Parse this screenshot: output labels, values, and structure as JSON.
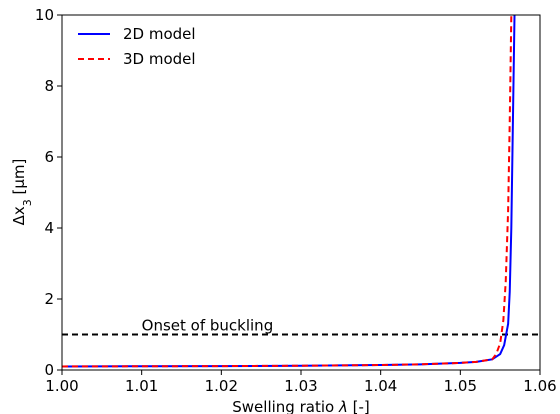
{
  "chart_data": {
    "type": "line",
    "xlabel_prefix": "Swelling ratio ",
    "xlabel_symbol": "λ",
    "xlabel_suffix": " [-]",
    "ylabel_prefix": "Δx",
    "ylabel_sub": "3",
    "ylabel_suffix": " [µm]",
    "xlim": [
      1.0,
      1.06
    ],
    "ylim": [
      0,
      10
    ],
    "xticks": [
      1.0,
      1.01,
      1.02,
      1.03,
      1.04,
      1.05,
      1.06
    ],
    "xtick_labels": [
      "1.00",
      "1.01",
      "1.02",
      "1.03",
      "1.04",
      "1.05",
      "1.06"
    ],
    "yticks": [
      0,
      2,
      4,
      6,
      8,
      10
    ],
    "ytick_labels": [
      "0",
      "2",
      "4",
      "6",
      "8",
      "10"
    ],
    "grid": false,
    "legend_position": "top-left",
    "series": [
      {
        "name": "2D model",
        "color": "#0000ff",
        "style": "solid",
        "x": [
          1.0,
          1.01,
          1.02,
          1.03,
          1.04,
          1.045,
          1.05,
          1.052,
          1.054,
          1.055,
          1.0555,
          1.056,
          1.0562,
          1.0564,
          1.0566,
          1.0568
        ],
        "y": [
          0.1,
          0.105,
          0.11,
          0.12,
          0.14,
          0.16,
          0.2,
          0.23,
          0.3,
          0.45,
          0.7,
          1.3,
          2.2,
          4.0,
          7.0,
          10.0
        ]
      },
      {
        "name": "3D model",
        "color": "#ff0000",
        "style": "dashed",
        "x": [
          1.0,
          1.01,
          1.02,
          1.03,
          1.04,
          1.045,
          1.05,
          1.052,
          1.054,
          1.0545,
          1.055,
          1.0554,
          1.0557,
          1.056,
          1.0562,
          1.0564
        ],
        "y": [
          0.1,
          0.105,
          0.11,
          0.12,
          0.14,
          0.16,
          0.2,
          0.23,
          0.3,
          0.45,
          0.75,
          1.4,
          2.5,
          4.5,
          7.0,
          10.0
        ]
      }
    ],
    "reference_line": {
      "y": 1.0,
      "color": "#000000",
      "style": "dashed",
      "label": "Onset of buckling"
    }
  }
}
